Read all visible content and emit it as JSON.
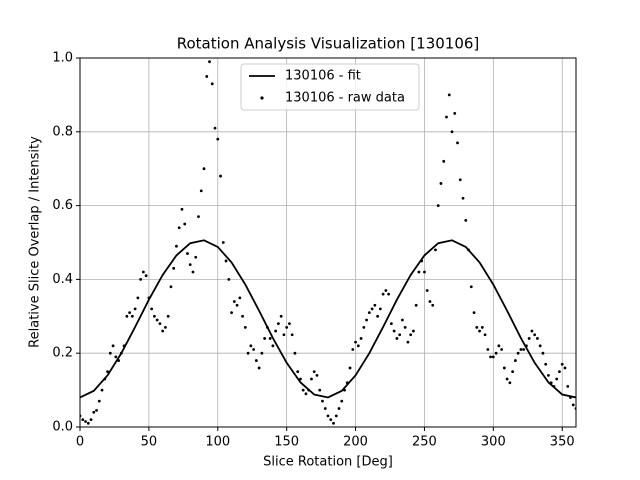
{
  "chart_data": {
    "type": "line",
    "title": "Rotation Analysis Visualization [130106]",
    "x_label": "Slice Rotation [Deg]",
    "y_label": "Relative Slice Overlap / Intensity",
    "xlim": [
      0,
      360
    ],
    "ylim": [
      0,
      1
    ],
    "xticks": [
      0,
      50,
      100,
      150,
      200,
      250,
      300,
      350
    ],
    "yticks": [
      {
        "value": 0,
        "label": "0.0"
      },
      {
        "value": 0.2,
        "label": "0.2"
      },
      {
        "value": 0.4,
        "label": "0.4"
      },
      {
        "value": 0.6,
        "label": "0.6"
      },
      {
        "value": 0.8,
        "label": "0.8"
      },
      {
        "value": 1,
        "label": "1.0"
      }
    ],
    "grid": true,
    "legend": "upper center",
    "series": [
      {
        "name": "130106 - fit",
        "type": "line",
        "color": "#000000",
        "x": [
          0,
          10,
          20,
          30,
          40,
          50,
          60,
          70,
          80,
          90,
          100,
          110,
          120,
          130,
          140,
          150,
          160,
          170,
          180,
          190,
          200,
          210,
          220,
          230,
          240,
          250,
          260,
          270,
          280,
          290,
          300,
          310,
          320,
          330,
          340,
          350,
          360
        ],
        "values": [
          0.08,
          0.098,
          0.14,
          0.2,
          0.271,
          0.345,
          0.412,
          0.465,
          0.498,
          0.506,
          0.488,
          0.446,
          0.386,
          0.315,
          0.241,
          0.174,
          0.121,
          0.088,
          0.08,
          0.098,
          0.14,
          0.2,
          0.271,
          0.345,
          0.412,
          0.465,
          0.498,
          0.506,
          0.488,
          0.446,
          0.386,
          0.315,
          0.241,
          0.174,
          0.121,
          0.088,
          0.08
        ]
      },
      {
        "name": "130106 - raw data",
        "type": "scatter",
        "color": "#000000",
        "x": [
          0,
          2,
          4,
          6,
          8,
          10,
          12,
          14,
          16,
          18,
          20,
          22,
          24,
          26,
          28,
          30,
          32,
          34,
          36,
          38,
          40,
          42,
          44,
          46,
          48,
          50,
          52,
          54,
          56,
          58,
          60,
          62,
          64,
          66,
          68,
          70,
          72,
          74,
          76,
          78,
          80,
          82,
          84,
          86,
          88,
          90,
          92,
          94,
          96,
          98,
          100,
          102,
          104,
          106,
          108,
          110,
          112,
          114,
          116,
          118,
          120,
          122,
          124,
          126,
          128,
          130,
          132,
          134,
          136,
          138,
          140,
          142,
          144,
          146,
          148,
          150,
          152,
          154,
          156,
          158,
          160,
          162,
          164,
          166,
          168,
          170,
          172,
          174,
          176,
          178,
          180,
          182,
          184,
          186,
          188,
          190,
          192,
          194,
          196,
          198,
          200,
          202,
          204,
          206,
          208,
          210,
          212,
          214,
          216,
          218,
          220,
          222,
          224,
          226,
          228,
          230,
          232,
          234,
          236,
          238,
          240,
          242,
          244,
          246,
          248,
          250,
          252,
          254,
          256,
          258,
          260,
          262,
          264,
          266,
          268,
          270,
          272,
          274,
          276,
          278,
          280,
          282,
          284,
          286,
          288,
          290,
          292,
          294,
          296,
          298,
          300,
          302,
          304,
          306,
          308,
          310,
          312,
          314,
          316,
          318,
          320,
          322,
          324,
          326,
          328,
          330,
          332,
          334,
          336,
          338,
          340,
          342,
          344,
          346,
          348,
          350,
          352,
          354,
          356,
          358,
          360
        ],
        "values": [
          0.03,
          0.02,
          0.015,
          0.01,
          0.02,
          0.04,
          0.045,
          0.07,
          0.1,
          0.13,
          0.15,
          0.2,
          0.22,
          0.19,
          0.18,
          0.2,
          0.22,
          0.3,
          0.31,
          0.3,
          0.32,
          0.35,
          0.4,
          0.42,
          0.41,
          0.35,
          0.32,
          0.3,
          0.29,
          0.28,
          0.26,
          0.27,
          0.3,
          0.38,
          0.43,
          0.49,
          0.54,
          0.59,
          0.55,
          0.47,
          0.44,
          0.42,
          0.46,
          0.57,
          0.64,
          0.7,
          0.95,
          0.99,
          0.93,
          0.81,
          0.78,
          0.68,
          0.5,
          0.45,
          0.4,
          0.31,
          0.34,
          0.33,
          0.35,
          0.3,
          0.27,
          0.2,
          0.22,
          0.21,
          0.18,
          0.16,
          0.2,
          0.24,
          0.27,
          0.24,
          0.22,
          0.26,
          0.28,
          0.3,
          0.25,
          0.27,
          0.28,
          0.25,
          0.2,
          0.15,
          0.13,
          0.1,
          0.09,
          0.1,
          0.13,
          0.15,
          0.14,
          0.1,
          0.07,
          0.05,
          0.03,
          0.02,
          0.01,
          0.03,
          0.05,
          0.07,
          0.1,
          0.12,
          0.16,
          0.21,
          0.23,
          0.22,
          0.24,
          0.27,
          0.29,
          0.31,
          0.32,
          0.33,
          0.3,
          0.32,
          0.36,
          0.37,
          0.36,
          0.28,
          0.26,
          0.24,
          0.25,
          0.29,
          0.27,
          0.23,
          0.25,
          0.26,
          0.33,
          0.42,
          0.45,
          0.42,
          0.37,
          0.34,
          0.33,
          0.48,
          0.6,
          0.66,
          0.72,
          0.84,
          0.9,
          0.8,
          0.85,
          0.77,
          0.67,
          0.62,
          0.56,
          0.48,
          0.38,
          0.31,
          0.27,
          0.26,
          0.27,
          0.25,
          0.21,
          0.19,
          0.19,
          0.2,
          0.22,
          0.21,
          0.16,
          0.13,
          0.12,
          0.15,
          0.18,
          0.2,
          0.21,
          0.21,
          0.22,
          0.24,
          0.26,
          0.25,
          0.24,
          0.22,
          0.2,
          0.17,
          0.14,
          0.12,
          0.11,
          0.13,
          0.15,
          0.17,
          0.16,
          0.11,
          0.08,
          0.06,
          0.05
        ]
      }
    ]
  }
}
